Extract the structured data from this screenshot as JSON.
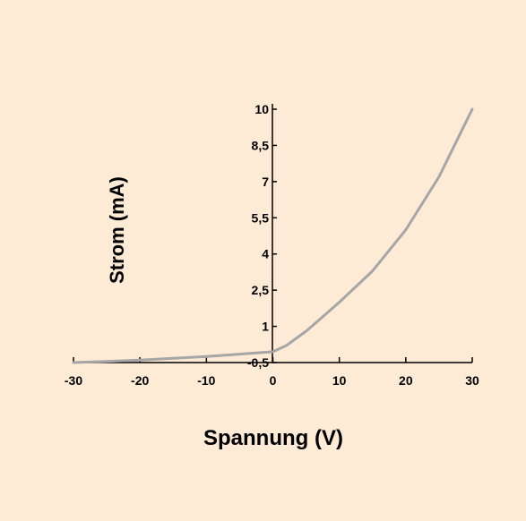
{
  "chart_data": {
    "type": "line",
    "title": "",
    "xlabel": "Spannung (V)",
    "ylabel": "Strom (mA)",
    "xlim": [
      -30,
      30
    ],
    "ylim": [
      -0.5,
      10
    ],
    "x_ticks": [
      -30,
      -20,
      -10,
      0,
      10,
      20,
      30
    ],
    "x_tick_labels": [
      "-30",
      "-20",
      "-10",
      "0",
      "10",
      "20",
      "30"
    ],
    "y_ticks": [
      -0.5,
      1,
      2.5,
      4,
      5.5,
      7,
      8.5,
      10
    ],
    "y_tick_labels": [
      "-0,5",
      "1",
      "2,5",
      "4",
      "5,5",
      "7",
      "8,5",
      "10"
    ],
    "grid": false,
    "legend": "none",
    "series": [
      {
        "x": [
          -30,
          -20,
          -10,
          -5,
          0,
          2,
          5,
          10,
          15,
          20,
          25,
          30
        ],
        "y": [
          -0.5,
          -0.4,
          -0.25,
          -0.15,
          -0.05,
          0.2,
          0.8,
          2.0,
          3.3,
          5.0,
          7.2,
          10.0
        ],
        "color": "#a6a6a6"
      }
    ],
    "colors": {
      "background": "#fdebd6",
      "axis": "#000000",
      "line": "#a6a6a6"
    }
  }
}
